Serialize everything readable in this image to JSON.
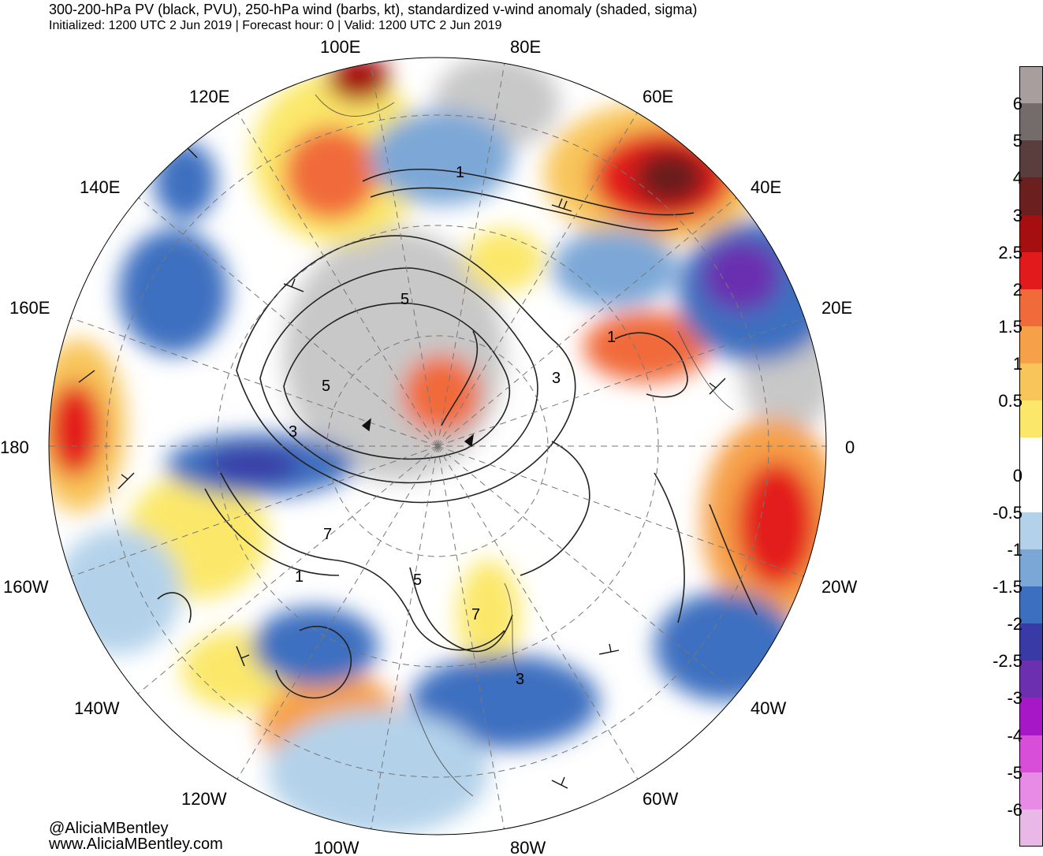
{
  "header": {
    "title": "300-200-hPa PV (black, PVU), 250-hPa wind (barbs, kt), standardized v-wind anomaly (shaded, sigma)",
    "subtitle": "Initialized: 1200 UTC 2 Jun 2019 | Forecast hour: 0 | Valid: 1200 UTC 2 Jun 2019"
  },
  "credits": {
    "handle": "@AliciaMBentley",
    "site": "www.AliciaMBentley.com"
  },
  "longitude_labels": [
    "100E",
    "80E",
    "120E",
    "60E",
    "140E",
    "40E",
    "160E",
    "20E",
    "180",
    "0",
    "160W",
    "20W",
    "140W",
    "40W",
    "120W",
    "60W",
    "100W",
    "80W"
  ],
  "pv_contour_labels": [
    "1",
    "5",
    "5",
    "3",
    "3",
    "1",
    "7",
    "1",
    "5",
    "7",
    "3"
  ],
  "colorbar": {
    "labels": [
      "6",
      "5",
      "4",
      "3",
      "2.5",
      "2",
      "1.5",
      "1",
      "0.5",
      "0",
      "-0.5",
      "-1",
      "-1.5",
      "-2",
      "-2.5",
      "-3",
      "-4",
      "-5",
      "-6"
    ],
    "colors": [
      "#a89e9e",
      "#736c6b",
      "#5a3e3e",
      "#6b1f1f",
      "#a50f0f",
      "#e31a1c",
      "#f16a3a",
      "#f6a04a",
      "#f8c55a",
      "#fbe86a",
      "#ffffff",
      "#ffffff",
      "#b3d2ea",
      "#7ba7d7",
      "#3d6fc0",
      "#3a3aa6",
      "#6b2fb0",
      "#a617c8",
      "#d84ed8",
      "#e78be6",
      "#e8b9e6"
    ]
  }
}
